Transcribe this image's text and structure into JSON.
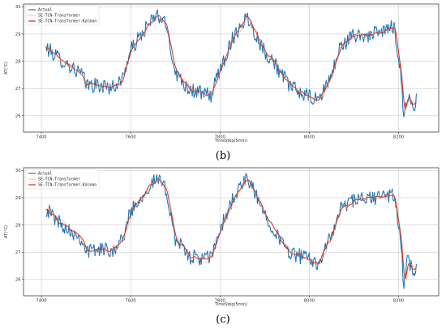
{
  "chart_data": [
    {
      "type": "line",
      "caption": "(b)",
      "xlabel": "TimeStep(5min)",
      "ylabel": "AT(°C)",
      "xlim": [
        7360,
        8290
      ],
      "ylim": [
        25.4,
        30.1
      ],
      "xticks": [
        7400,
        7600,
        7800,
        8000,
        8200
      ],
      "yticks": [
        26,
        27,
        28,
        29,
        30
      ],
      "grid": true,
      "legend_position": "top-left",
      "anchors": {
        "x": [
          7410,
          7440,
          7470,
          7490,
          7500,
          7530,
          7560,
          7580,
          7600,
          7640,
          7660,
          7680,
          7700,
          7730,
          7760,
          7780,
          7800,
          7830,
          7860,
          7880,
          7900,
          7920,
          7940,
          7960,
          7990,
          8020,
          8050,
          8070,
          8100,
          8130,
          8160,
          8190,
          8205,
          8212,
          8220,
          8232,
          8240
        ],
        "y": [
          28.5,
          28.1,
          27.75,
          27.55,
          27.15,
          27.1,
          27.05,
          27.3,
          28.4,
          29.35,
          29.7,
          29.3,
          27.6,
          27.0,
          26.8,
          26.75,
          27.7,
          28.9,
          29.65,
          29.0,
          28.35,
          28.0,
          27.45,
          27.05,
          26.75,
          26.55,
          27.5,
          28.55,
          28.95,
          28.95,
          29.05,
          29.3,
          27.6,
          25.95,
          26.7,
          26.35,
          26.55
        ]
      },
      "series": [
        {
          "name": "Actual",
          "noise": 0.28,
          "lag": 0,
          "smooth": 1,
          "color": "#1f77b4"
        },
        {
          "name": "SE-TCN-Transformer",
          "noise": 0.18,
          "lag": 3,
          "smooth": 2,
          "color": "#f5b585"
        },
        {
          "name": "SE-TCN-Transformer-Kalman",
          "noise": 0.1,
          "lag": 2,
          "smooth": 3,
          "color": "#d62728"
        }
      ]
    },
    {
      "type": "line",
      "caption": "(c)",
      "xlabel": "TimeStep(5min)",
      "ylabel": "AT(°C)",
      "xlim": [
        7360,
        8290
      ],
      "ylim": [
        25.4,
        30.1
      ],
      "xticks": [
        7400,
        7600,
        7800,
        8000,
        8200
      ],
      "yticks": [
        26,
        27,
        28,
        29,
        30
      ],
      "grid": true,
      "legend_position": "top-left",
      "anchors": {
        "x": [
          7410,
          7440,
          7470,
          7490,
          7500,
          7530,
          7560,
          7580,
          7600,
          7640,
          7660,
          7680,
          7700,
          7730,
          7760,
          7780,
          7800,
          7830,
          7860,
          7880,
          7900,
          7920,
          7940,
          7960,
          7990,
          8020,
          8050,
          8070,
          8100,
          8130,
          8160,
          8190,
          8205,
          8212,
          8220,
          8232,
          8240
        ],
        "y": [
          28.6,
          28.1,
          27.75,
          27.5,
          27.05,
          27.1,
          27.1,
          27.4,
          28.5,
          29.4,
          29.7,
          29.25,
          27.5,
          26.85,
          26.75,
          26.8,
          27.8,
          29.0,
          29.7,
          29.1,
          28.4,
          27.9,
          27.3,
          26.95,
          26.8,
          26.6,
          27.6,
          28.6,
          28.9,
          28.95,
          29.05,
          29.1,
          27.4,
          25.8,
          26.7,
          26.3,
          26.5
        ]
      },
      "series": [
        {
          "name": "Actual",
          "noise": 0.28,
          "lag": 0,
          "smooth": 1,
          "color": "#1f77b4"
        },
        {
          "name": "SE-TCN-Transformer",
          "noise": 0.2,
          "lag": 3,
          "smooth": 2,
          "color": "#f5b585"
        },
        {
          "name": "SE-TCN-Transformer-Kalman",
          "noise": 0.12,
          "lag": 2,
          "smooth": 3,
          "color": "#d62728"
        }
      ]
    }
  ]
}
